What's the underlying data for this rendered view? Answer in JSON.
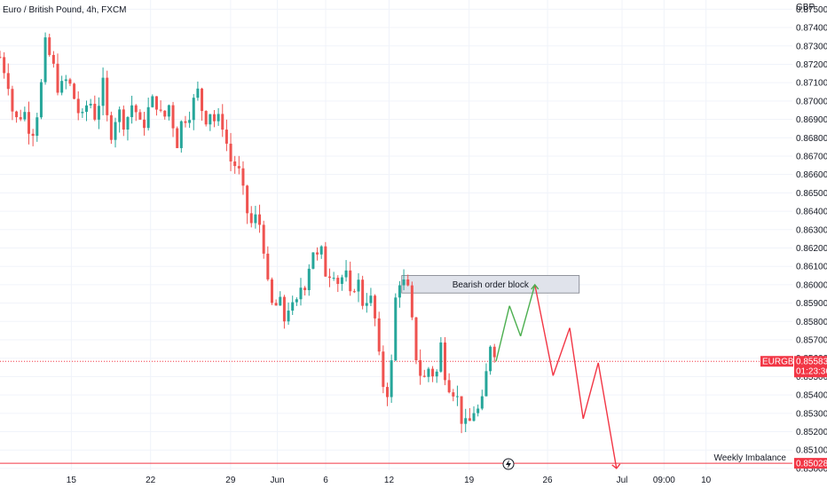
{
  "header": {
    "title": "Euro / British Pound, 4h, FXCM",
    "currency": "GBP"
  },
  "colors": {
    "up": "#26a69a",
    "down": "#ef5350",
    "price_line": "#f23645",
    "projection_up": "#4caf50",
    "projection_down": "#f23645",
    "order_block_fill": "#e0e3eb"
  },
  "price_label": {
    "symbol": "EURGBP",
    "price": "0.85583",
    "countdown": "01:23:36"
  },
  "weekly_label": {
    "text": "Weekly Imbalance",
    "price": "0.85028"
  },
  "order_block": {
    "label": "Bearish order block",
    "top": 0.8605,
    "bottom": 0.85955
  },
  "lightning_icon": "lightning-icon",
  "chart_data": {
    "type": "candlestick",
    "title": "Euro / British Pound, 4h, FXCM",
    "ylabel": "GBP",
    "ylim": [
      0.8499,
      0.8755
    ],
    "y_ticks": [
      "0.87500",
      "0.87400",
      "0.87300",
      "0.87200",
      "0.87100",
      "0.87000",
      "0.86900",
      "0.86800",
      "0.86700",
      "0.86600",
      "0.86500",
      "0.86400",
      "0.86300",
      "0.86200",
      "0.86100",
      "0.86000",
      "0.85900",
      "0.85800",
      "0.85700",
      "0.85600",
      "0.85500",
      "0.85400",
      "0.85300",
      "0.85200",
      "0.85100",
      "0.85000"
    ],
    "x_ticks": [
      {
        "label": "15",
        "t": 0.09
      },
      {
        "label": "22",
        "t": 0.19
      },
      {
        "label": "29",
        "t": 0.291
      },
      {
        "label": "Jun",
        "t": 0.35
      },
      {
        "label": "6",
        "t": 0.411
      },
      {
        "label": "12",
        "t": 0.491
      },
      {
        "label": "19",
        "t": 0.592
      },
      {
        "label": "26",
        "t": 0.691
      },
      {
        "label": "Jul",
        "t": 0.785
      },
      {
        "label": "09:00",
        "t": 0.838
      },
      {
        "label": "10",
        "t": 0.891
      }
    ],
    "grid": true,
    "close_path": [
      [
        0.0,
        0.8724
      ],
      [
        0.01,
        0.8712
      ],
      [
        0.018,
        0.8688
      ],
      [
        0.03,
        0.8695
      ],
      [
        0.04,
        0.8682
      ],
      [
        0.05,
        0.87
      ],
      [
        0.057,
        0.873
      ],
      [
        0.065,
        0.8722
      ],
      [
        0.075,
        0.8705
      ],
      [
        0.085,
        0.8712
      ],
      [
        0.095,
        0.87
      ],
      [
        0.103,
        0.8688
      ],
      [
        0.112,
        0.8702
      ],
      [
        0.12,
        0.8692
      ],
      [
        0.13,
        0.8708
      ],
      [
        0.138,
        0.868
      ],
      [
        0.148,
        0.8695
      ],
      [
        0.158,
        0.8688
      ],
      [
        0.168,
        0.87
      ],
      [
        0.178,
        0.8684
      ],
      [
        0.188,
        0.8696
      ],
      [
        0.196,
        0.8702
      ],
      [
        0.205,
        0.8688
      ],
      [
        0.215,
        0.87
      ],
      [
        0.222,
        0.8675
      ],
      [
        0.23,
        0.869
      ],
      [
        0.24,
        0.8695
      ],
      [
        0.25,
        0.8705
      ],
      [
        0.258,
        0.869
      ],
      [
        0.265,
        0.8695
      ],
      [
        0.272,
        0.8688
      ],
      [
        0.28,
        0.869
      ],
      [
        0.29,
        0.8668
      ],
      [
        0.3,
        0.8664
      ],
      [
        0.31,
        0.8642
      ],
      [
        0.318,
        0.8632
      ],
      [
        0.325,
        0.8638
      ],
      [
        0.332,
        0.8625
      ],
      [
        0.338,
        0.8598
      ],
      [
        0.345,
        0.8585
      ],
      [
        0.352,
        0.8592
      ],
      [
        0.358,
        0.858
      ],
      [
        0.365,
        0.859
      ],
      [
        0.372,
        0.8584
      ],
      [
        0.38,
        0.86
      ],
      [
        0.388,
        0.8602
      ],
      [
        0.393,
        0.8625
      ],
      [
        0.398,
        0.8612
      ],
      [
        0.405,
        0.8618
      ],
      [
        0.412,
        0.8605
      ],
      [
        0.42,
        0.861
      ],
      [
        0.428,
        0.86
      ],
      [
        0.435,
        0.8608
      ],
      [
        0.442,
        0.8592
      ],
      [
        0.45,
        0.8605
      ],
      [
        0.458,
        0.859
      ],
      [
        0.465,
        0.8595
      ],
      [
        0.472,
        0.8586
      ],
      [
        0.478,
        0.856
      ],
      [
        0.484,
        0.8545
      ],
      [
        0.49,
        0.8542
      ],
      [
        0.495,
        0.856
      ],
      [
        0.5,
        0.8598
      ],
      [
        0.505,
        0.8604
      ],
      [
        0.51,
        0.86
      ],
      [
        0.516,
        0.8595
      ],
      [
        0.522,
        0.857
      ],
      [
        0.528,
        0.8554
      ],
      [
        0.535,
        0.8548
      ],
      [
        0.542,
        0.8556
      ],
      [
        0.55,
        0.8548
      ],
      [
        0.556,
        0.8568
      ],
      [
        0.562,
        0.8552
      ],
      [
        0.568,
        0.8545
      ],
      [
        0.575,
        0.8542
      ],
      [
        0.582,
        0.8528
      ],
      [
        0.588,
        0.8522
      ],
      [
        0.594,
        0.8526
      ],
      [
        0.6,
        0.8535
      ],
      [
        0.606,
        0.8528
      ],
      [
        0.612,
        0.8545
      ],
      [
        0.618,
        0.8568
      ],
      [
        0.622,
        0.8572
      ],
      [
        0.626,
        0.8558
      ]
    ],
    "projection": [
      {
        "t": 0.626,
        "y": 0.85583,
        "c": "up"
      },
      {
        "t": 0.643,
        "y": 0.85885,
        "c": "up"
      },
      {
        "t": 0.657,
        "y": 0.8572,
        "c": "up"
      },
      {
        "t": 0.675,
        "y": 0.86,
        "c": "up"
      },
      {
        "t": 0.698,
        "y": 0.85505,
        "c": "down"
      },
      {
        "t": 0.719,
        "y": 0.85765,
        "c": "down"
      },
      {
        "t": 0.736,
        "y": 0.8527,
        "c": "down"
      },
      {
        "t": 0.755,
        "y": 0.85575,
        "c": "down"
      },
      {
        "t": 0.778,
        "y": 0.85,
        "c": "down"
      }
    ],
    "current_price": 0.85583,
    "weekly_imbalance": 0.85028
  }
}
